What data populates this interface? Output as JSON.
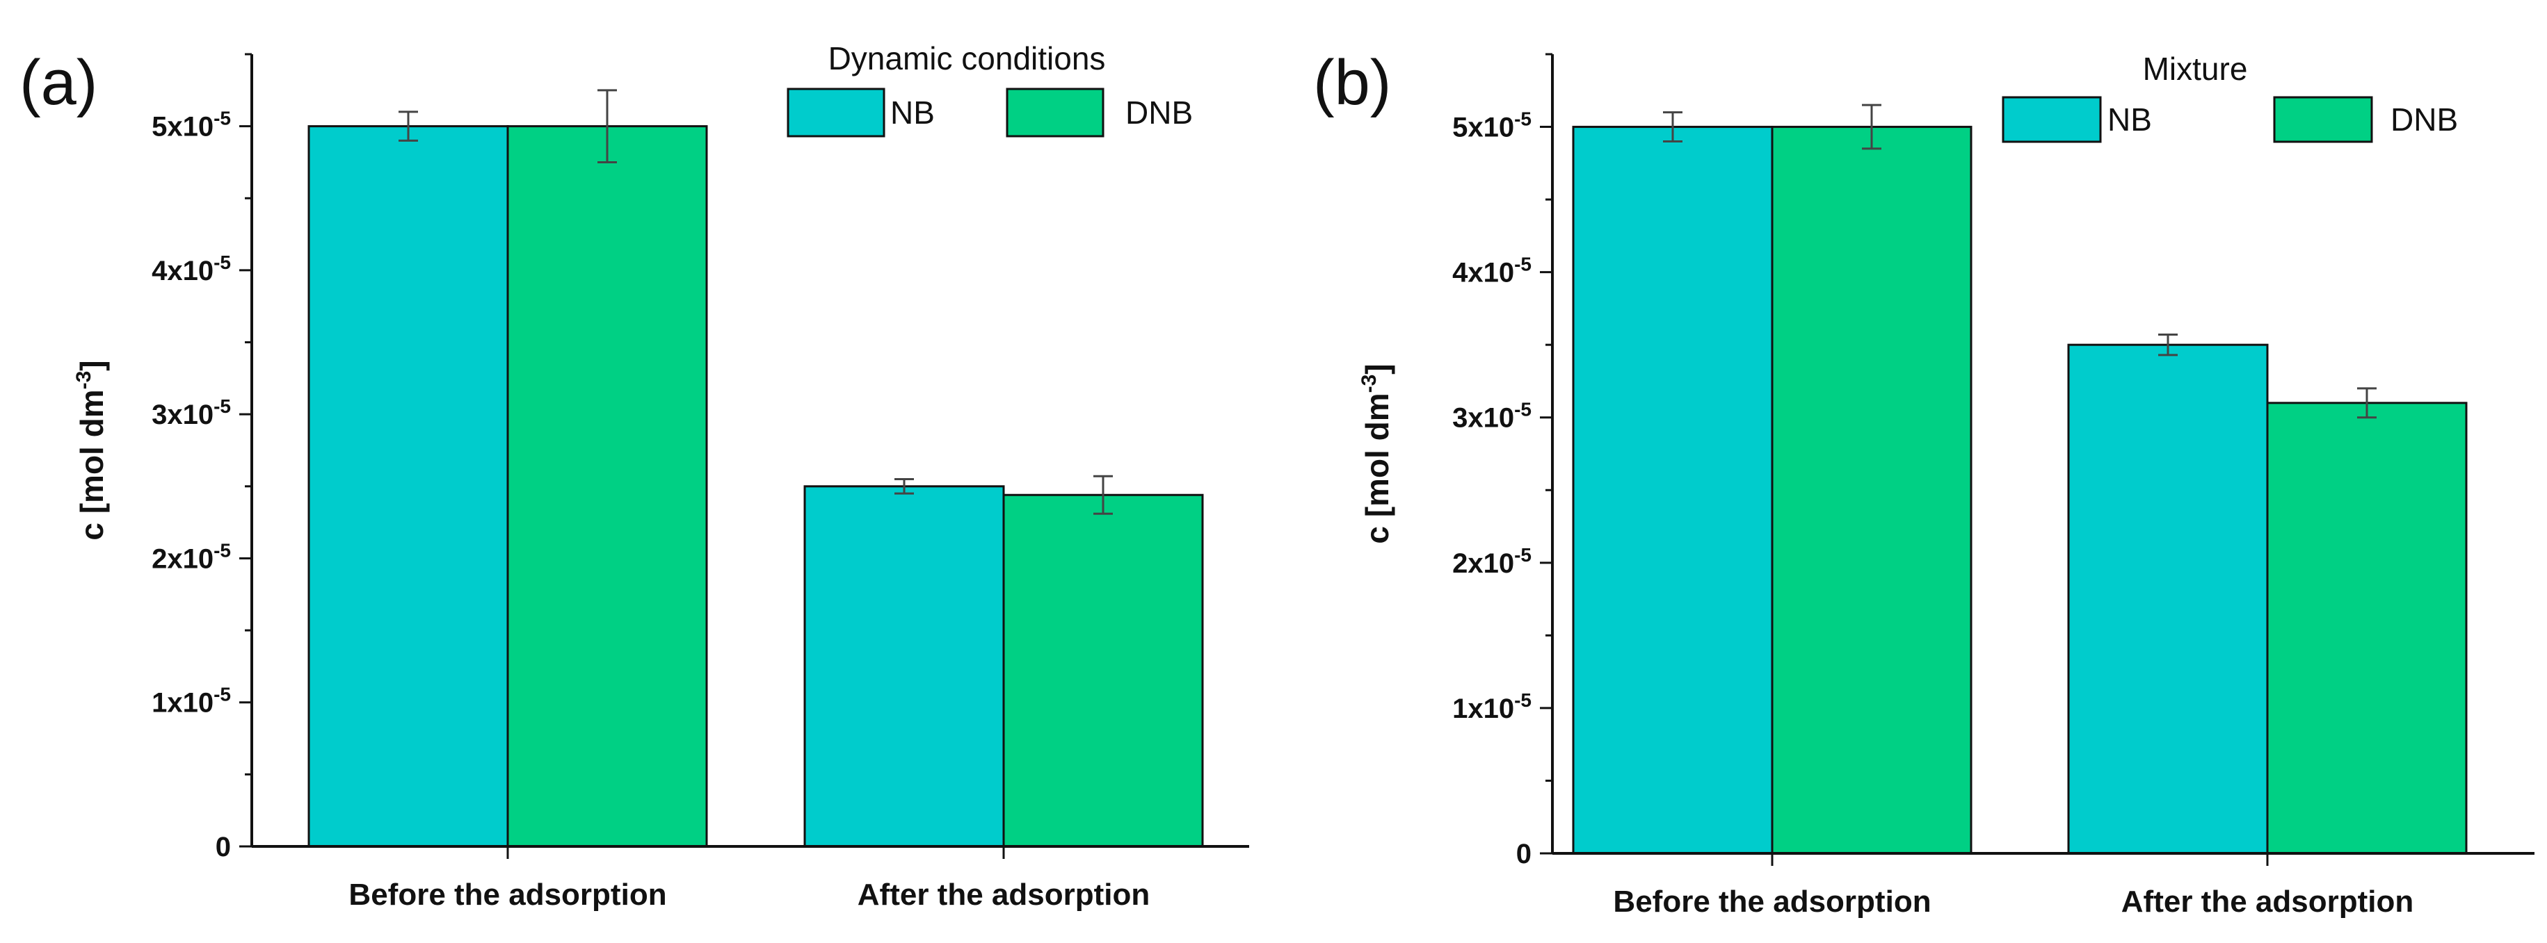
{
  "chart_data": [
    {
      "type": "bar",
      "panel_label": "(a)",
      "legend_title": "Dynamic conditions",
      "legend_position": "top-right",
      "categories": [
        "Before the adsorption",
        "After the adsorption"
      ],
      "series": [
        {
          "name": "NB",
          "color": "#00CCCC",
          "values": [
            5e-05,
            2.5e-05
          ],
          "errors": [
            1e-06,
            5e-07
          ]
        },
        {
          "name": "DNB",
          "color": "#00D084",
          "values": [
            5e-05,
            2.44e-05
          ],
          "errors": [
            2.5e-06,
            1.3e-06
          ]
        }
      ],
      "ylabel_main": "c [mol dm",
      "ylabel_sup": "-3",
      "ylabel_close": "]",
      "ylim": [
        0,
        5.5e-05
      ],
      "yticks": [
        {
          "value": 0,
          "base": "0",
          "exp": ""
        },
        {
          "value": 1e-05,
          "base": "1x10",
          "exp": "-5"
        },
        {
          "value": 2e-05,
          "base": "2x10",
          "exp": "-5"
        },
        {
          "value": 3e-05,
          "base": "3x10",
          "exp": "-5"
        },
        {
          "value": 4e-05,
          "base": "4x10",
          "exp": "-5"
        },
        {
          "value": 5e-05,
          "base": "5x10",
          "exp": "-5"
        }
      ]
    },
    {
      "type": "bar",
      "panel_label": "(b)",
      "legend_title": "Mixture",
      "legend_position": "top-right",
      "categories": [
        "Before the adsorption",
        "After the adsorption"
      ],
      "series": [
        {
          "name": "NB",
          "color": "#00CCCC",
          "values": [
            5e-05,
            3.5e-05
          ],
          "errors": [
            1e-06,
            7e-07
          ]
        },
        {
          "name": "DNB",
          "color": "#00D084",
          "values": [
            5e-05,
            3.1e-05
          ],
          "errors": [
            1.5e-06,
            1e-06
          ]
        }
      ],
      "ylabel_main": "c [mol dm",
      "ylabel_sup": "-3",
      "ylabel_close": "]",
      "ylim": [
        0,
        5.5e-05
      ],
      "yticks": [
        {
          "value": 0,
          "base": "0",
          "exp": ""
        },
        {
          "value": 1e-05,
          "base": "1x10",
          "exp": "-5"
        },
        {
          "value": 2e-05,
          "base": "2x10",
          "exp": "-5"
        },
        {
          "value": 3e-05,
          "base": "3x10",
          "exp": "-5"
        },
        {
          "value": 4e-05,
          "base": "4x10",
          "exp": "-5"
        },
        {
          "value": 5e-05,
          "base": "5x10",
          "exp": "-5"
        }
      ]
    }
  ]
}
